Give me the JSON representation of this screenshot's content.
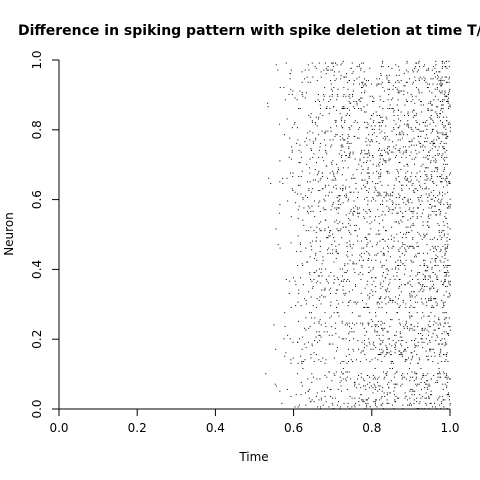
{
  "chart_data": {
    "type": "scatter",
    "title": "Difference in spiking pattern with spike deletion at time T/",
    "xlabel": "Time",
    "ylabel": "Neuron",
    "xlim": [
      0,
      1
    ],
    "ylim": [
      0,
      1
    ],
    "xticks": [
      "0.0",
      "0.2",
      "0.4",
      "0.6",
      "0.8",
      "1.0"
    ],
    "yticks": [
      "0.0",
      "0.2",
      "0.4",
      "0.6",
      "0.8",
      "1.0"
    ],
    "grid": false,
    "legend": "none",
    "point_color": "#000000",
    "spike_region": {
      "t_start": 0.52,
      "t_end": 1.0
    },
    "approx_spike_count": 3000
  }
}
